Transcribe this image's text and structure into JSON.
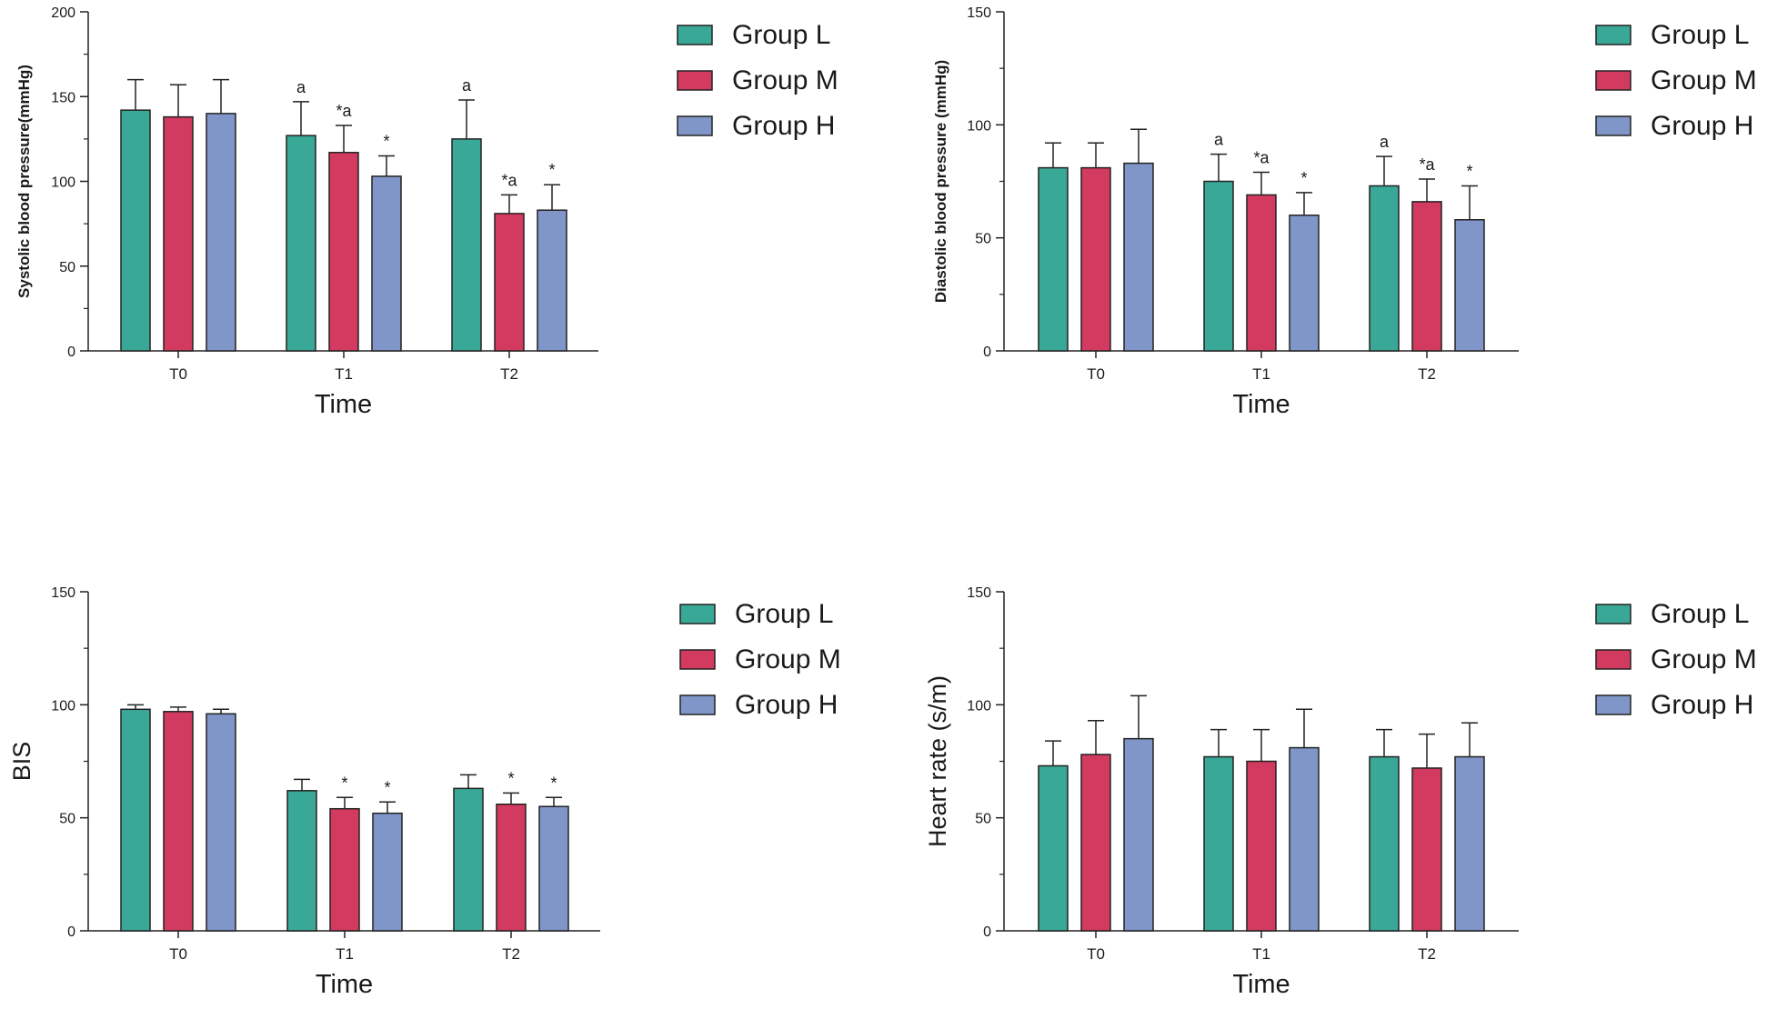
{
  "legend": {
    "entries": [
      "Group L",
      "Group M",
      "Group H"
    ],
    "colors": [
      "#3aa896",
      "#d23a5f",
      "#8096c8"
    ]
  },
  "chart_data": [
    {
      "type": "bar",
      "id": "sbp",
      "categories": [
        "T0",
        "T1",
        "T2"
      ],
      "xlabel": "Time",
      "ylabel": "Systolic blood pressure(mmHg)",
      "ylim": [
        0,
        200
      ],
      "yticks": [
        "0",
        "50",
        "100",
        "150",
        "200"
      ],
      "series": [
        {
          "name": "Group L",
          "values": [
            142,
            127,
            125
          ],
          "errors": [
            18,
            20,
            23
          ],
          "annotations": [
            "",
            "a",
            "a"
          ]
        },
        {
          "name": "Group M",
          "values": [
            138,
            117,
            81
          ],
          "errors": [
            19,
            16,
            11
          ],
          "annotations": [
            "",
            "*a",
            "*a"
          ]
        },
        {
          "name": "Group H",
          "values": [
            140,
            103,
            83
          ],
          "errors": [
            20,
            12,
            15
          ],
          "annotations": [
            "",
            "*",
            "*"
          ]
        }
      ]
    },
    {
      "type": "bar",
      "id": "dbp",
      "categories": [
        "T0",
        "T1",
        "T2"
      ],
      "xlabel": "Time",
      "ylabel": "Diastolic blood pressure (mmHg)",
      "ylim": [
        0,
        150
      ],
      "yticks": [
        "0",
        "50",
        "100",
        "150"
      ],
      "series": [
        {
          "name": "Group L",
          "values": [
            81,
            75,
            73
          ],
          "errors": [
            11,
            12,
            13
          ],
          "annotations": [
            "",
            "a",
            "a"
          ]
        },
        {
          "name": "Group M",
          "values": [
            81,
            69,
            66
          ],
          "errors": [
            11,
            10,
            10
          ],
          "annotations": [
            "",
            "*a",
            "*a"
          ]
        },
        {
          "name": "Group H",
          "values": [
            83,
            60,
            58
          ],
          "errors": [
            15,
            10,
            15
          ],
          "annotations": [
            "",
            "*",
            "*"
          ]
        }
      ]
    },
    {
      "type": "bar",
      "id": "bis",
      "categories": [
        "T0",
        "T1",
        "T2"
      ],
      "xlabel": "Time",
      "ylabel": "BIS",
      "ylim": [
        0,
        150
      ],
      "yticks": [
        "0",
        "50",
        "100",
        "150"
      ],
      "series": [
        {
          "name": "Group L",
          "values": [
            98,
            62,
            63
          ],
          "errors": [
            2,
            5,
            6
          ],
          "annotations": [
            "",
            "",
            ""
          ]
        },
        {
          "name": "Group M",
          "values": [
            97,
            54,
            56
          ],
          "errors": [
            2,
            5,
            5
          ],
          "annotations": [
            "",
            "*",
            "*"
          ]
        },
        {
          "name": "Group H",
          "values": [
            96,
            52,
            55
          ],
          "errors": [
            2,
            5,
            4
          ],
          "annotations": [
            "",
            "*",
            "*"
          ]
        }
      ]
    },
    {
      "type": "bar",
      "id": "hr",
      "categories": [
        "T0",
        "T1",
        "T2"
      ],
      "xlabel": "Time",
      "ylabel": "Heart rate (s/m)",
      "ylim": [
        0,
        150
      ],
      "yticks": [
        "0",
        "50",
        "100",
        "150"
      ],
      "series": [
        {
          "name": "Group L",
          "values": [
            73,
            77,
            77
          ],
          "errors": [
            11,
            12,
            12
          ],
          "annotations": [
            "",
            "",
            ""
          ]
        },
        {
          "name": "Group M",
          "values": [
            78,
            75,
            72
          ],
          "errors": [
            15,
            14,
            15
          ],
          "annotations": [
            "",
            "",
            ""
          ]
        },
        {
          "name": "Group H",
          "values": [
            85,
            81,
            77
          ],
          "errors": [
            19,
            17,
            15
          ],
          "annotations": [
            "",
            "",
            ""
          ]
        }
      ]
    }
  ]
}
